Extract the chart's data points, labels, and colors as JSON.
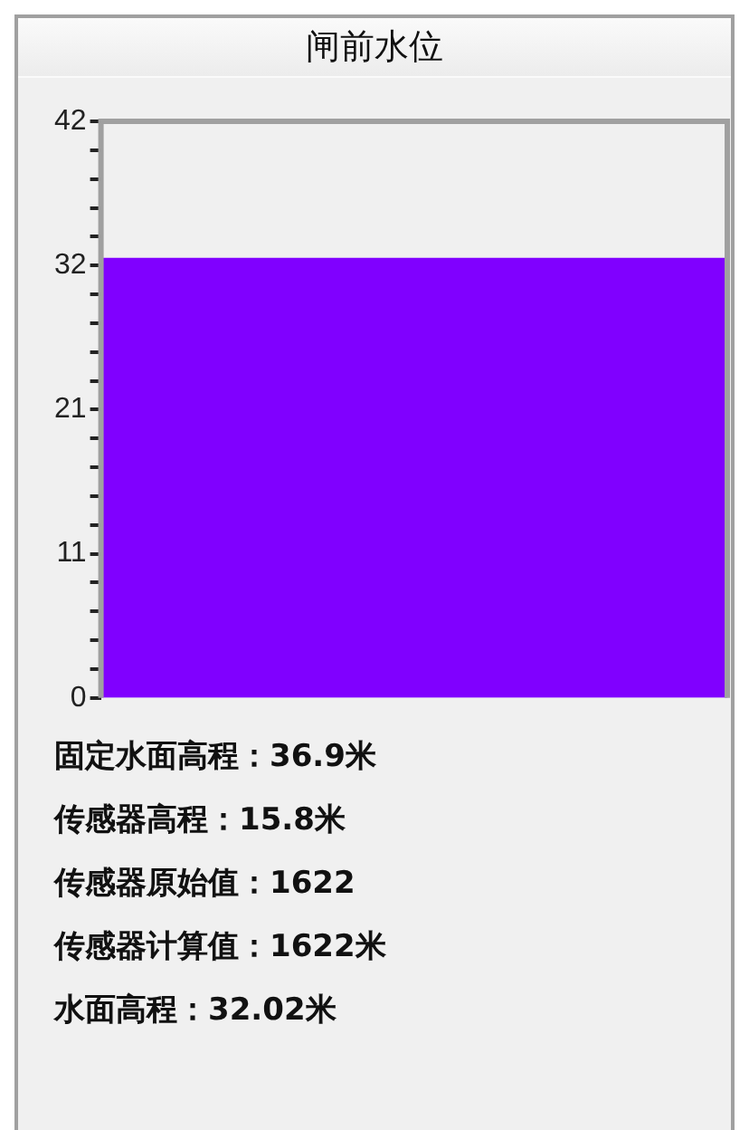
{
  "chart_data": {
    "type": "bar",
    "title": "闸前水位",
    "categories": [
      null
    ],
    "values": [
      32.02
    ],
    "color": "#8000ff",
    "ylim": [
      0,
      42
    ],
    "yticks": [
      0,
      {
        "value": 2.1,
        "label": null
      },
      {
        "value": 4.2,
        "label": null
      },
      {
        "value": 6.3,
        "label": null
      },
      {
        "value": 8.4,
        "label": null
      },
      {
        "value": 10.5,
        "label": "11"
      },
      {
        "value": 12.6,
        "label": null
      },
      {
        "value": 14.7,
        "label": null
      },
      {
        "value": 16.8,
        "label": null
      },
      {
        "value": 18.9,
        "label": null
      },
      21,
      {
        "value": 23.1,
        "label": null
      },
      {
        "value": 25.2,
        "label": null
      },
      {
        "value": 27.3,
        "label": null
      },
      {
        "value": 29.4,
        "label": null
      },
      {
        "value": 31.5,
        "label": "32"
      },
      {
        "value": 33.6,
        "label": null
      },
      {
        "value": 35.7,
        "label": null
      },
      {
        "value": 37.8,
        "label": null
      },
      {
        "value": 39.9,
        "label": null
      },
      42
    ],
    "tick_labels": "y",
    "annotations": [
      "固定水面高程：36.9米",
      "传感器高程：15.8米",
      "传感器原始值：1622",
      "传感器计算值：1622米",
      "水面高程：32.02米"
    ]
  }
}
